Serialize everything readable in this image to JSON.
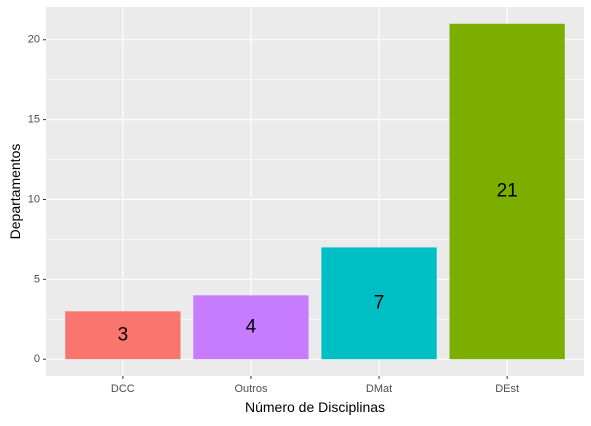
{
  "chart_data": {
    "type": "bar",
    "title": "",
    "xlabel": "Número de Disciplinas",
    "ylabel": "Departamentos",
    "categories": [
      "DCC",
      "Outros",
      "DMat",
      "DEst"
    ],
    "values": [
      3,
      4,
      7,
      21
    ],
    "data_labels": [
      "3",
      "4",
      "7",
      "21"
    ],
    "colors": [
      "#F8766D",
      "#C77CFF",
      "#00BFC4",
      "#7CAE00"
    ],
    "ylim": [
      -1.05,
      22.05
    ],
    "y_ticks": [
      0,
      5,
      10,
      15,
      20
    ],
    "y_tick_labels": [
      "0",
      "5",
      "10",
      "15",
      "20"
    ],
    "grid": true,
    "legend": "none",
    "panel_background": "#EBEBEB",
    "grid_color": "#FFFFFF"
  }
}
